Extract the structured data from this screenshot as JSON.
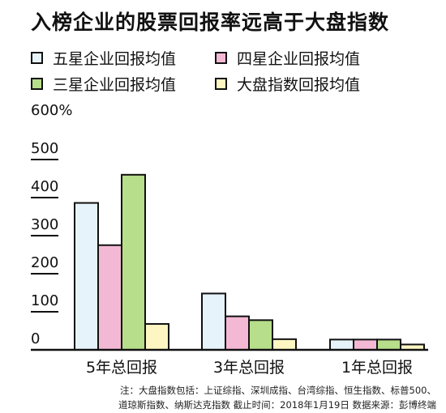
{
  "title": "入榜企业的股票回报率远高于大盘指数",
  "legend": [
    {
      "label": "五星企业回报均值",
      "color": "#e6f3fb"
    },
    {
      "label": "四星企业回报均值",
      "color": "#f3b9d4"
    },
    {
      "label": "三星企业回报均值",
      "color": "#b7de8b"
    },
    {
      "label": "大盘指数回报均值",
      "color": "#fdf6c3"
    }
  ],
  "chart_data": {
    "type": "bar",
    "categories": [
      "5年总回报",
      "3年总回报",
      "1年总回报"
    ],
    "series": [
      {
        "name": "五星企业回报均值",
        "values": [
          386,
          148,
          27
        ]
      },
      {
        "name": "四星企业回报均值",
        "values": [
          275,
          88,
          27
        ]
      },
      {
        "name": "三星企业回报均值",
        "values": [
          460,
          78,
          27
        ]
      },
      {
        "name": "大盘指数回报均值",
        "values": [
          68,
          28,
          14
        ]
      }
    ],
    "yticks": [
      "600%",
      "500",
      "400",
      "300",
      "200",
      "100",
      "0"
    ],
    "ylim": [
      0,
      600
    ]
  },
  "notes": [
    "注：大盘指数包括：上证综指、深圳成指、台湾综指、恒生指数、标普500、",
    "道琼斯指数、纳斯达克指数 截止时间：2018年1月19日 数据来源：彭博终端"
  ]
}
